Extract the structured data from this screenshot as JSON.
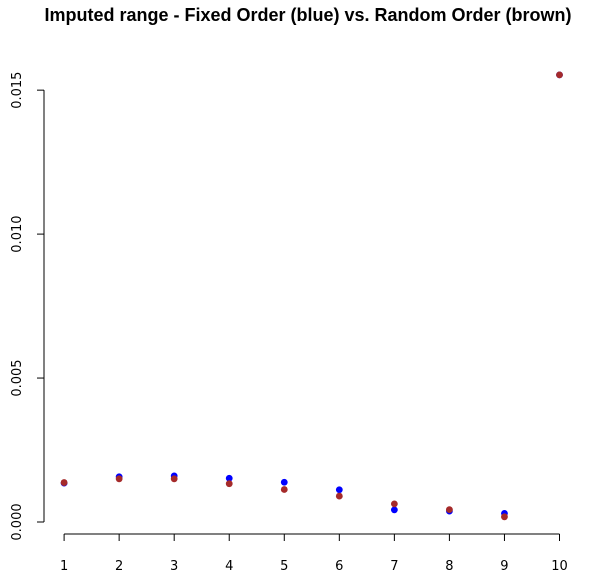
{
  "chart_data": {
    "type": "scatter",
    "title": "Imputed range - Fixed Order (blue) vs. Random Order (brown)",
    "xlabel": "",
    "ylabel": "",
    "x_ticks": [
      1,
      2,
      3,
      4,
      5,
      6,
      7,
      8,
      9,
      10
    ],
    "y_ticks": [
      0.0,
      0.005,
      0.01,
      0.015
    ],
    "y_tick_labels": [
      "0.000",
      "0.005",
      "0.010",
      "0.015"
    ],
    "xlim": [
      0.98,
      10.1
    ],
    "ylim": [
      0,
      0.0157
    ],
    "grid": false,
    "legend": "none",
    "series": [
      {
        "color": "#0000ff",
        "x": [
          1,
          2,
          3,
          4,
          5,
          6,
          7,
          8,
          9,
          10
        ],
        "values": [
          0.00135,
          0.00157,
          0.0016,
          0.00152,
          0.00138,
          0.00112,
          0.00042,
          0.00038,
          0.0003,
          0.01553
        ]
      },
      {
        "color": "#a52a2a",
        "x": [
          1,
          2,
          3,
          4,
          5,
          6,
          7,
          8,
          9,
          10
        ],
        "values": [
          0.00137,
          0.0015,
          0.0015,
          0.00133,
          0.00113,
          0.0009,
          0.00063,
          0.00043,
          0.00018,
          0.01553
        ]
      }
    ]
  }
}
